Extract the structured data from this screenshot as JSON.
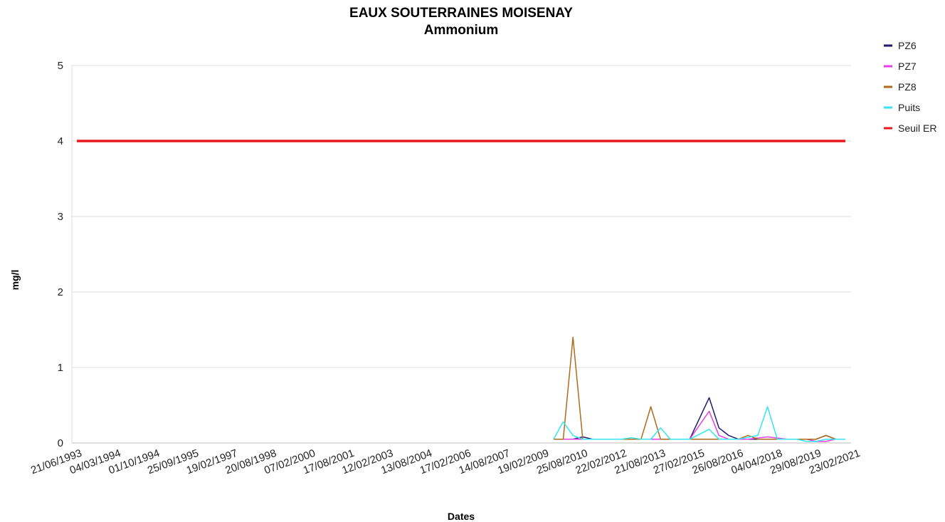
{
  "chart_data": {
    "type": "line",
    "title": "EAUX SOUTERRAINES MOISENAY",
    "subtitle": "Ammonium",
    "xlabel": "Dates",
    "ylabel": "mg/l",
    "ylim": [
      0,
      5
    ],
    "yticks": [
      0,
      1,
      2,
      3,
      4,
      5
    ],
    "grid": true,
    "legend_position": "top-right",
    "x_tick_labels": [
      "21/06/1993",
      "04/03/1994",
      "01/10/1994",
      "25/09/1995",
      "19/02/1997",
      "20/08/1998",
      "07/02/2000",
      "17/08/2001",
      "12/02/2003",
      "13/08/2004",
      "17/02/2006",
      "14/08/2007",
      "19/02/2009",
      "25/08/2010",
      "22/02/2012",
      "21/08/2013",
      "27/02/2015",
      "26/08/2016",
      "04/04/2018",
      "29/08/2019",
      "23/02/2021"
    ],
    "n_points": 80,
    "series": [
      {
        "name": "PZ6",
        "color": "#1f1a6e",
        "points": [
          [
            49,
            0.05
          ],
          [
            51,
            0.05
          ],
          [
            52,
            0.08
          ],
          [
            53,
            0.05
          ],
          [
            55,
            0.05
          ],
          [
            57,
            0.05
          ],
          [
            59,
            0.05
          ],
          [
            61,
            0.05
          ],
          [
            62,
            0.05
          ],
          [
            63,
            0.05
          ],
          [
            65,
            0.6
          ],
          [
            66,
            0.2
          ],
          [
            67,
            0.1
          ],
          [
            68,
            0.05
          ],
          [
            70,
            0.05
          ],
          [
            72,
            0.05
          ],
          [
            74,
            0.05
          ],
          [
            76,
            0.05
          ],
          [
            77,
            0.1
          ],
          [
            78,
            0.05
          ],
          [
            79,
            0.05
          ]
        ]
      },
      {
        "name": "PZ7",
        "color": "#e83ce8",
        "points": [
          [
            49,
            0.05
          ],
          [
            51,
            0.05
          ],
          [
            53,
            0.05
          ],
          [
            55,
            0.05
          ],
          [
            57,
            0.05
          ],
          [
            59,
            0.05
          ],
          [
            61,
            0.05
          ],
          [
            63,
            0.05
          ],
          [
            65,
            0.42
          ],
          [
            66,
            0.1
          ],
          [
            67,
            0.05
          ],
          [
            69,
            0.05
          ],
          [
            71,
            0.08
          ],
          [
            73,
            0.05
          ],
          [
            75,
            0.05
          ],
          [
            76,
            0.02
          ],
          [
            77,
            0.02
          ],
          [
            78,
            0.05
          ],
          [
            79,
            0.05
          ]
        ]
      },
      {
        "name": "PZ8",
        "color": "#b06a1c",
        "points": [
          [
            49,
            0.05
          ],
          [
            50,
            0.05
          ],
          [
            51,
            1.4
          ],
          [
            52,
            0.05
          ],
          [
            54,
            0.05
          ],
          [
            56,
            0.05
          ],
          [
            58,
            0.05
          ],
          [
            59,
            0.48
          ],
          [
            60,
            0.05
          ],
          [
            62,
            0.05
          ],
          [
            64,
            0.05
          ],
          [
            66,
            0.05
          ],
          [
            68,
            0.05
          ],
          [
            69,
            0.1
          ],
          [
            70,
            0.05
          ],
          [
            72,
            0.05
          ],
          [
            74,
            0.05
          ],
          [
            76,
            0.05
          ],
          [
            77,
            0.1
          ],
          [
            78,
            0.05
          ],
          [
            79,
            0.05
          ]
        ]
      },
      {
        "name": "Puits",
        "color": "#33e6f0",
        "points": [
          [
            49,
            0.05
          ],
          [
            50,
            0.28
          ],
          [
            51,
            0.1
          ],
          [
            52,
            0.05
          ],
          [
            54,
            0.05
          ],
          [
            56,
            0.05
          ],
          [
            57,
            0.07
          ],
          [
            58,
            0.05
          ],
          [
            59,
            0.05
          ],
          [
            60,
            0.2
          ],
          [
            61,
            0.05
          ],
          [
            63,
            0.05
          ],
          [
            65,
            0.18
          ],
          [
            66,
            0.05
          ],
          [
            68,
            0.05
          ],
          [
            70,
            0.1
          ],
          [
            71,
            0.48
          ],
          [
            72,
            0.05
          ],
          [
            74,
            0.05
          ],
          [
            75,
            0.02
          ],
          [
            76,
            0.02
          ],
          [
            77,
            0.05
          ],
          [
            79,
            0.05
          ]
        ]
      },
      {
        "name": "Seuil ER",
        "color": "#e8191c",
        "points": [
          [
            0,
            4
          ],
          [
            79,
            4
          ]
        ]
      }
    ]
  }
}
